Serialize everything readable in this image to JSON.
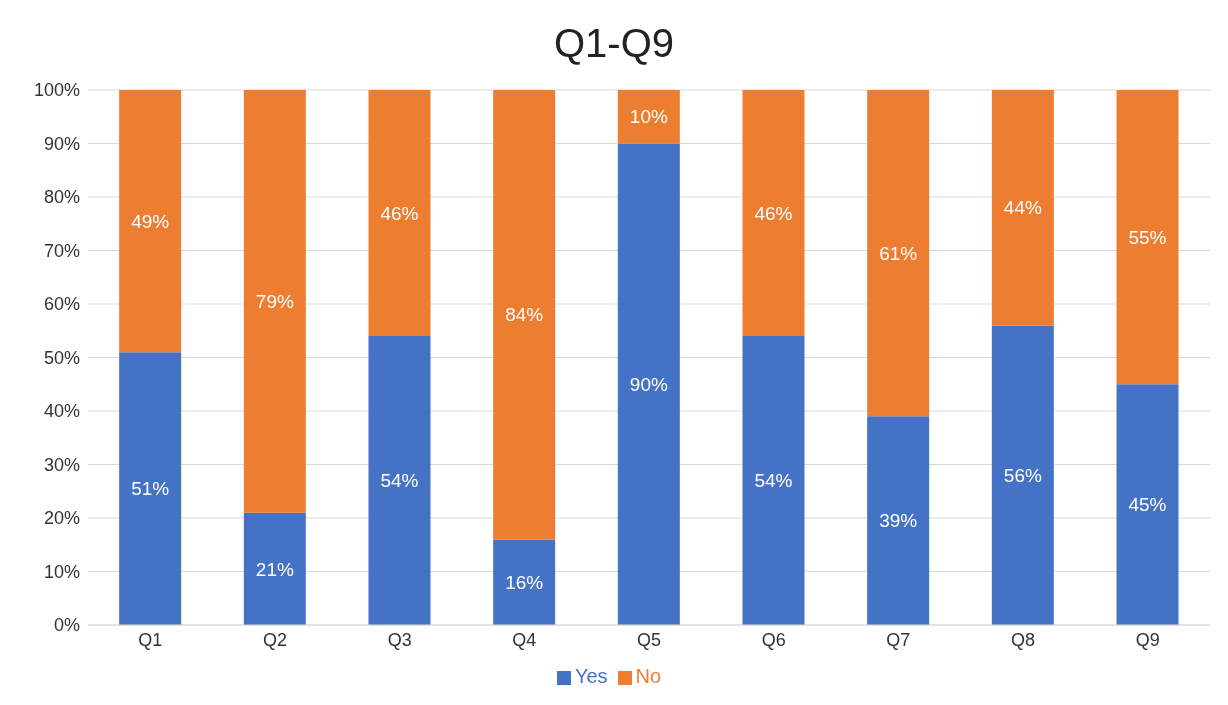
{
  "chart_data": {
    "type": "bar",
    "title": "Q1-Q9",
    "categories": [
      "Q1",
      "Q2",
      "Q3",
      "Q4",
      "Q5",
      "Q6",
      "Q7",
      "Q8",
      "Q9"
    ],
    "stacked": true,
    "series": [
      {
        "name": "Yes",
        "color": "#4472c4",
        "values": [
          51,
          21,
          54,
          16,
          90,
          54,
          39,
          56,
          45
        ],
        "value_labels": [
          "51%",
          "21%",
          "54%",
          "16%",
          "90%",
          "54%",
          "39%",
          "56%",
          "45%"
        ]
      },
      {
        "name": "No",
        "color": "#ed7d31",
        "values": [
          49,
          79,
          46,
          84,
          10,
          46,
          61,
          44,
          55
        ],
        "value_labels": [
          "49%",
          "79%",
          "46%",
          "84%",
          "10%",
          "46%",
          "61%",
          "44%",
          "55%"
        ]
      }
    ],
    "ylim": [
      0,
      100
    ],
    "yticks": [
      {
        "value": 0,
        "label": "0%"
      },
      {
        "value": 10,
        "label": "10%"
      },
      {
        "value": 20,
        "label": "20%"
      },
      {
        "value": 30,
        "label": "30%"
      },
      {
        "value": 40,
        "label": "40%"
      },
      {
        "value": 50,
        "label": "50%"
      },
      {
        "value": 60,
        "label": "60%"
      },
      {
        "value": 70,
        "label": "70%"
      },
      {
        "value": 80,
        "label": "80%"
      },
      {
        "value": 90,
        "label": "90%"
      },
      {
        "value": 100,
        "label": "100%"
      }
    ],
    "grid": "y",
    "legend": "bottom"
  }
}
